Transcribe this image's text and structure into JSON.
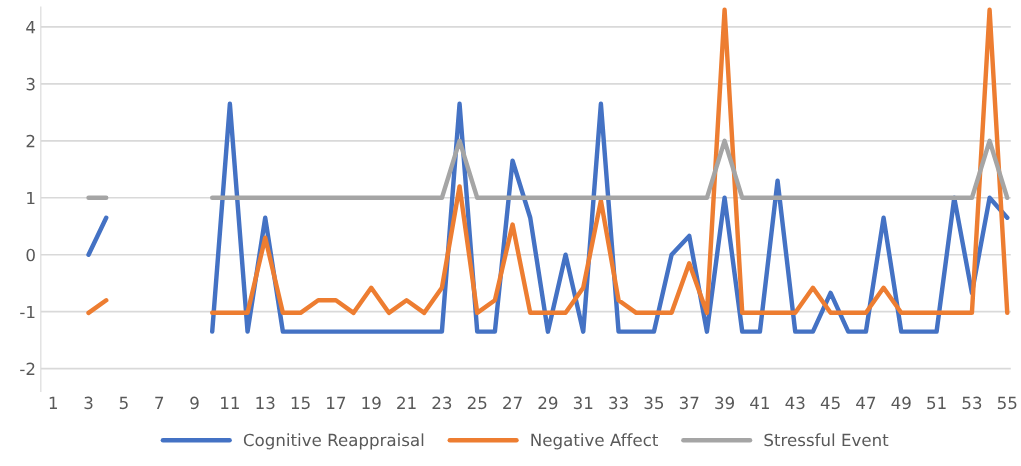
{
  "chart_data": {
    "type": "line",
    "categories": [
      "1",
      null,
      "3",
      null,
      "5",
      null,
      "7",
      null,
      "9",
      null,
      "11",
      null,
      "13",
      null,
      "15",
      null,
      "17",
      null,
      "19",
      null,
      "21",
      null,
      "23",
      null,
      "25",
      null,
      "27",
      null,
      "29",
      null,
      "31",
      null,
      "33",
      null,
      "35",
      null,
      "37",
      null,
      "39",
      null,
      "41",
      null,
      "43",
      null,
      "45",
      null,
      "47",
      null,
      "49",
      null,
      "51",
      null,
      "53",
      null,
      "55"
    ],
    "series": [
      {
        "name": "Cognitive Reappraisal",
        "color": "#4472c4",
        "values": [
          null,
          null,
          0,
          0.65,
          null,
          null,
          null,
          null,
          null,
          -1.35,
          2.65,
          -1.35,
          0.65,
          -1.35,
          -1.35,
          -1.35,
          -1.35,
          -1.35,
          -1.35,
          -1.35,
          -1.35,
          -1.35,
          -1.35,
          2.65,
          -1.35,
          -1.35,
          1.65,
          0.65,
          -1.35,
          0,
          -1.35,
          2.65,
          -1.35,
          -1.35,
          -1.35,
          0,
          0.33,
          -1.35,
          1,
          -1.35,
          -1.35,
          1.3,
          -1.35,
          -1.35,
          -0.67,
          -1.35,
          -1.35,
          0.65,
          -1.35,
          -1.35,
          -1.35,
          1,
          -0.67,
          1,
          0.65
        ]
      },
      {
        "name": "Negative Affect",
        "color": "#ed7d31",
        "values": [
          null,
          null,
          -1.02,
          -0.8,
          null,
          null,
          null,
          null,
          null,
          -1.02,
          -1.02,
          -1.02,
          0.3,
          -1.02,
          -1.02,
          -0.8,
          -0.8,
          -1.02,
          -0.58,
          -1.02,
          -0.8,
          -1.02,
          -0.58,
          1.2,
          -1.02,
          -0.8,
          0.53,
          -1.02,
          -1.02,
          -1.02,
          -0.58,
          0.95,
          -0.8,
          -1.02,
          -1.02,
          -1.02,
          -0.15,
          -1.02,
          4.3,
          -1.02,
          -1.02,
          -1.02,
          -1.02,
          -0.58,
          -1.02,
          -1.02,
          -1.02,
          -0.58,
          -1.02,
          -1.02,
          -1.02,
          -1.02,
          -1.02,
          4.3,
          -1.02
        ]
      },
      {
        "name": "Stressful Event",
        "color": "#a5a5a5",
        "values": [
          null,
          null,
          1,
          1,
          null,
          null,
          null,
          null,
          null,
          1,
          1,
          1,
          1,
          1,
          1,
          1,
          1,
          1,
          1,
          1,
          1,
          1,
          1,
          2,
          1,
          1,
          1,
          1,
          1,
          1,
          1,
          1,
          1,
          1,
          1,
          1,
          1,
          1,
          2,
          1,
          1,
          1,
          1,
          1,
          1,
          1,
          1,
          1,
          1,
          1,
          1,
          1,
          1,
          2,
          1
        ]
      }
    ],
    "ylim": [
      -2.4,
      4.35
    ],
    "yticks": [
      -2,
      -1,
      0,
      1,
      2,
      3,
      4
    ],
    "grid": "y",
    "legend": "bottom",
    "line_style": "solid"
  }
}
